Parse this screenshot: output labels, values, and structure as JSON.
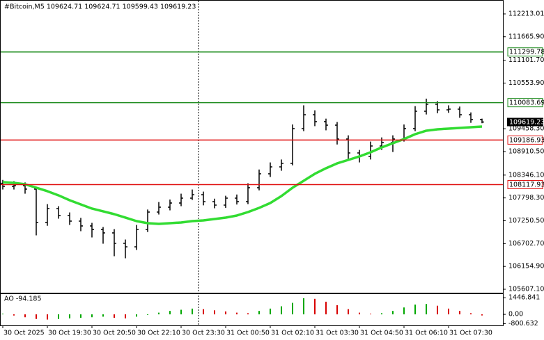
{
  "chart_data": [
    {
      "type": "candlestick",
      "title": "#Bitcoin,M5  109624.71 109624.71 109599.43 109619.23",
      "x": [
        "30 Oct 2025",
        null,
        null,
        null,
        "30 Oct 19:30",
        null,
        null,
        null,
        "30 Oct 20:50",
        null,
        null,
        null,
        "30 Oct 22:10",
        null,
        null,
        null,
        "30 Oct 23:30",
        null,
        null,
        null,
        "31 Oct 00:50",
        null,
        null,
        null,
        "31 Oct 02:10",
        null,
        null,
        null,
        "31 Oct 03:30",
        null,
        null,
        null,
        "31 Oct 04:50",
        null,
        null,
        null,
        "31 Oct 06:10",
        null,
        null,
        null,
        "31 Oct 07:30",
        null,
        null,
        null
      ],
      "open": [
        108150,
        108076,
        108090,
        108010,
        107209,
        107543,
        107376,
        107242,
        107126,
        107042,
        106959,
        106709,
        106625,
        107042,
        107459,
        107576,
        107676,
        107793,
        107876,
        107709,
        107626,
        107793,
        107709,
        108043,
        108377,
        108543,
        108627,
        109461,
        109794,
        109628,
        109544,
        109211,
        108877,
        108794,
        109044,
        109127,
        109211,
        109461,
        109878,
        110045,
        109911,
        109928,
        109794,
        109678
      ],
      "high": [
        108230,
        108200,
        108170,
        108060,
        107650,
        107600,
        107450,
        107320,
        107200,
        107100,
        107050,
        106800,
        107150,
        107520,
        107700,
        107760,
        107900,
        108000,
        107950,
        107780,
        107850,
        107880,
        108150,
        108480,
        108650,
        108720,
        109560,
        110020,
        109900,
        109700,
        109620,
        109300,
        108950,
        109150,
        109250,
        109300,
        109560,
        110000,
        110180,
        110120,
        110020,
        109990,
        109850,
        109700
      ],
      "low": [
        108000,
        108000,
        107900,
        106900,
        107130,
        107300,
        107150,
        107000,
        106850,
        106700,
        106400,
        106350,
        106550,
        106980,
        107400,
        107500,
        107600,
        107750,
        107620,
        107550,
        107560,
        107640,
        107650,
        107980,
        108300,
        108450,
        108580,
        109400,
        109520,
        109420,
        109080,
        108700,
        108650,
        108720,
        108950,
        108900,
        109150,
        109400,
        109800,
        109830,
        109840,
        109720,
        109600,
        109590
      ],
      "close": [
        108076,
        108090,
        108010,
        107209,
        107543,
        107376,
        107242,
        107126,
        107042,
        106959,
        106709,
        106625,
        107042,
        107459,
        107576,
        107676,
        107793,
        107876,
        107709,
        107626,
        107793,
        107709,
        108043,
        108377,
        108543,
        108627,
        109461,
        109794,
        109628,
        109544,
        109211,
        108877,
        108794,
        109044,
        109127,
        109211,
        109461,
        109878,
        110045,
        109911,
        109928,
        109794,
        109678,
        109619
      ],
      "candle_color": "#000000",
      "series": [
        {
          "color": "#32dc32",
          "values": [
            108176,
            108159,
            108126,
            108043,
            107960,
            107860,
            107743,
            107643,
            107543,
            107476,
            107409,
            107326,
            107242,
            107192,
            107175,
            107192,
            107209,
            107242,
            107259,
            107292,
            107326,
            107376,
            107459,
            107559,
            107676,
            107843,
            108043,
            108210,
            108377,
            108510,
            108627,
            108710,
            108794,
            108894,
            109010,
            109110,
            109211,
            109327,
            109411,
            109444,
            109461,
            109478,
            109494,
            109511
          ]
        }
      ],
      "levels": [
        {
          "value": 111299.78,
          "color": "#1e8c1e"
        },
        {
          "value": 110083.69,
          "color": "#1e8c1e"
        },
        {
          "value": 109186.93,
          "color": "#e01010"
        },
        {
          "value": 108117.93,
          "color": "#e01010"
        }
      ],
      "current_price": 109619.23,
      "ylim": [
        105524,
        112463
      ],
      "yticks": [
        112213.01,
        {
          "value": 111665.9,
          "label": "111665.90"
        },
        {
          "value": 111101.7,
          "label": "111101.70"
        },
        {
          "value": 110553.9,
          "label": "110553.90"
        },
        {
          "value": 109458.3,
          "label": "109458.30"
        },
        {
          "value": 108910.5,
          "label": "108910.50"
        },
        {
          "value": 108346.1,
          "label": "108346.10"
        },
        {
          "value": 107798.3,
          "label": "107798.30"
        },
        {
          "value": 107250.5,
          "label": "107250.50"
        },
        {
          "value": 106702.7,
          "label": "106702.70"
        },
        {
          "value": 106154.9,
          "label": "106154.90"
        },
        {
          "value": 105607.1,
          "label": "105607.10"
        }
      ]
    },
    {
      "type": "bar",
      "title": "AO -94.185",
      "values": [
        50,
        -100,
        -250,
        -400,
        -450,
        -400,
        -350,
        -300,
        -250,
        -200,
        -300,
        -350,
        -200,
        -50,
        150,
        300,
        400,
        500,
        450,
        350,
        250,
        150,
        100,
        300,
        500,
        700,
        1000,
        1400,
        1350,
        1100,
        800,
        450,
        150,
        50,
        100,
        300,
        600,
        850,
        900,
        750,
        500,
        300,
        100,
        -94.185
      ],
      "up_color": "#00a800",
      "down_color": "#d80000",
      "ylim": [
        -900,
        1700
      ],
      "yticks": [
        1446.841,
        {
          "value": 0,
          "label": "0.00"
        },
        -800.632
      ]
    }
  ]
}
